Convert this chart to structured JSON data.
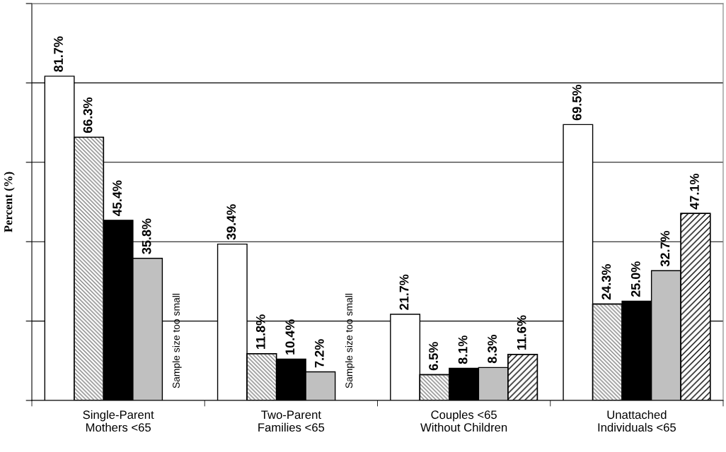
{
  "chart_data": {
    "type": "bar",
    "ylabel": "Percent (%)",
    "categories": [
      "Single-Parent\nMothers <65",
      "Two-Parent\nFamilies <65",
      "Couples <65\nWithout Children",
      "Unattached\nIndividuals <65"
    ],
    "series": [
      {
        "color": "#ffffff",
        "values": [
          81.7,
          39.4,
          21.7,
          69.5
        ],
        "value_labels": [
          "81.7%",
          "39.4%",
          "21.7%",
          "69.5%"
        ]
      },
      {
        "color": "#808080",
        "values": [
          66.3,
          11.8,
          6.5,
          24.3
        ],
        "value_labels": [
          "66.3%",
          "11.8%",
          "6.5%",
          "24.3%"
        ]
      },
      {
        "color": "#000000",
        "values": [
          45.4,
          10.4,
          8.1,
          25.0
        ],
        "value_labels": [
          "45.4%",
          "10.4%",
          "8.1%",
          "25.0%"
        ]
      },
      {
        "color": "#c0c0c0",
        "values": [
          35.8,
          7.2,
          8.3,
          32.7
        ],
        "value_labels": [
          "35.8%",
          "7.2%",
          "8.3%",
          "32.7%"
        ]
      },
      {
        "color": "#000000",
        "values": [
          null,
          null,
          11.6,
          47.1
        ],
        "value_labels": [
          null,
          null,
          "11.6%",
          "47.1%"
        ]
      }
    ],
    "annotations": [
      "Sample size too small",
      "Sample size too small"
    ],
    "ylim": [
      0,
      100
    ],
    "yticks": [
      {
        "value": 0,
        "label": null
      },
      {
        "value": 20,
        "label": null
      },
      {
        "value": 40,
        "label": null
      },
      {
        "value": 60,
        "label": null
      },
      {
        "value": 80,
        "label": null
      },
      {
        "value": 100,
        "label": null
      }
    ],
    "tick_labels": "x",
    "grid": "y",
    "legend": false
  }
}
